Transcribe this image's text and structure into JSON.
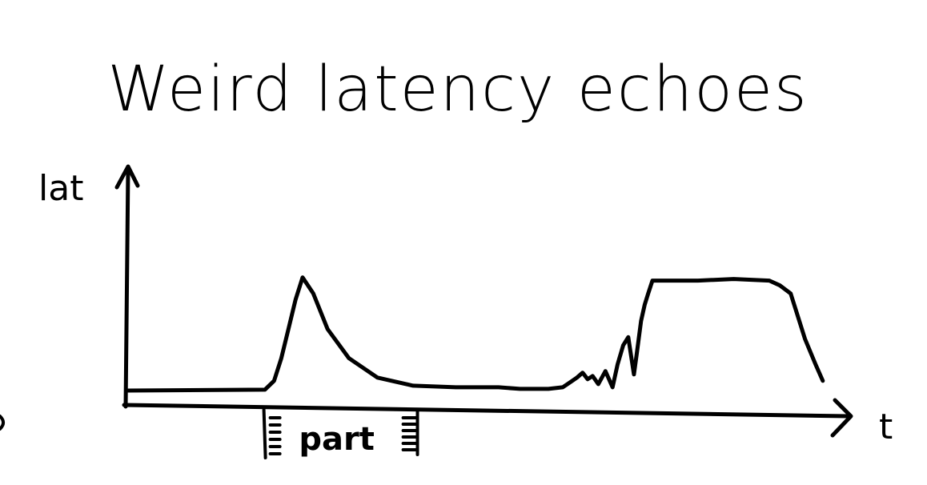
{
  "chart_data": {
    "type": "line",
    "title": "Weird latency echoes",
    "xlabel": "t",
    "ylabel": "lat",
    "xlim": [
      0,
      100
    ],
    "ylim": [
      0,
      100
    ],
    "grid": false,
    "legend": "none",
    "annotations": [
      {
        "text": "part",
        "x_start": 19.5,
        "x_end": 39.5
      }
    ],
    "series": [
      {
        "x": [
          0,
          19.2,
          20.5,
          21.5,
          22.5,
          23.5,
          24.5,
          26,
          28,
          31,
          35,
          40,
          46,
          49,
          52,
          55,
          59,
          61,
          62,
          63,
          63.8,
          64.5,
          65.2,
          66,
          67,
          68,
          68.7,
          69.5,
          70.2,
          71,
          71.4,
          72,
          72.5,
          73,
          73.6,
          75,
          80,
          85,
          90,
          91.5,
          93,
          94,
          95,
          96.5,
          97.5
        ],
        "y": [
          2,
          2.5,
          8,
          22,
          40,
          58,
          72,
          62,
          40,
          22,
          10,
          5,
          4,
          4,
          4,
          3,
          3,
          4,
          7,
          10,
          13,
          9,
          11,
          6,
          14,
          4,
          18,
          30,
          35,
          12,
          25,
          45,
          55,
          62,
          70,
          70,
          70,
          71,
          70,
          67,
          62,
          48,
          34,
          18,
          8
        ]
      }
    ]
  }
}
